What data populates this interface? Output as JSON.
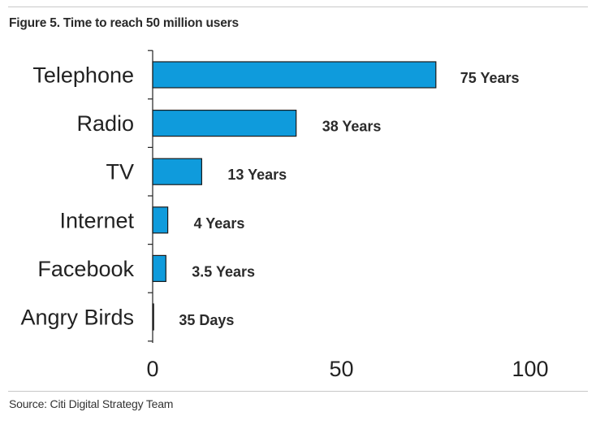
{
  "figure": {
    "title": "Figure 5. Time to reach 50 million users",
    "source": "Source: Citi Digital Strategy Team"
  },
  "colors": {
    "bar_fill": "#0f9bdc",
    "bar_stroke": "#1a1a1a",
    "axis": "#222222",
    "rule": "#c8c8c8"
  },
  "chart_data": {
    "type": "bar",
    "orientation": "horizontal",
    "title": "Figure 5. Time to reach 50 million users",
    "xlabel": "",
    "ylabel": "",
    "unit": "years",
    "xlim": [
      0,
      100
    ],
    "xticks": [
      0,
      50,
      100
    ],
    "grid": false,
    "legend": "none",
    "categories": [
      "Telephone",
      "Radio",
      "TV",
      "Internet",
      "Facebook",
      "Angry Birds"
    ],
    "values": [
      75,
      38,
      13,
      4,
      3.5,
      0.096
    ],
    "data_labels": [
      "75 Years",
      "38 Years",
      "13 Years",
      "4 Years",
      "3.5 Years",
      "35 Days"
    ]
  }
}
